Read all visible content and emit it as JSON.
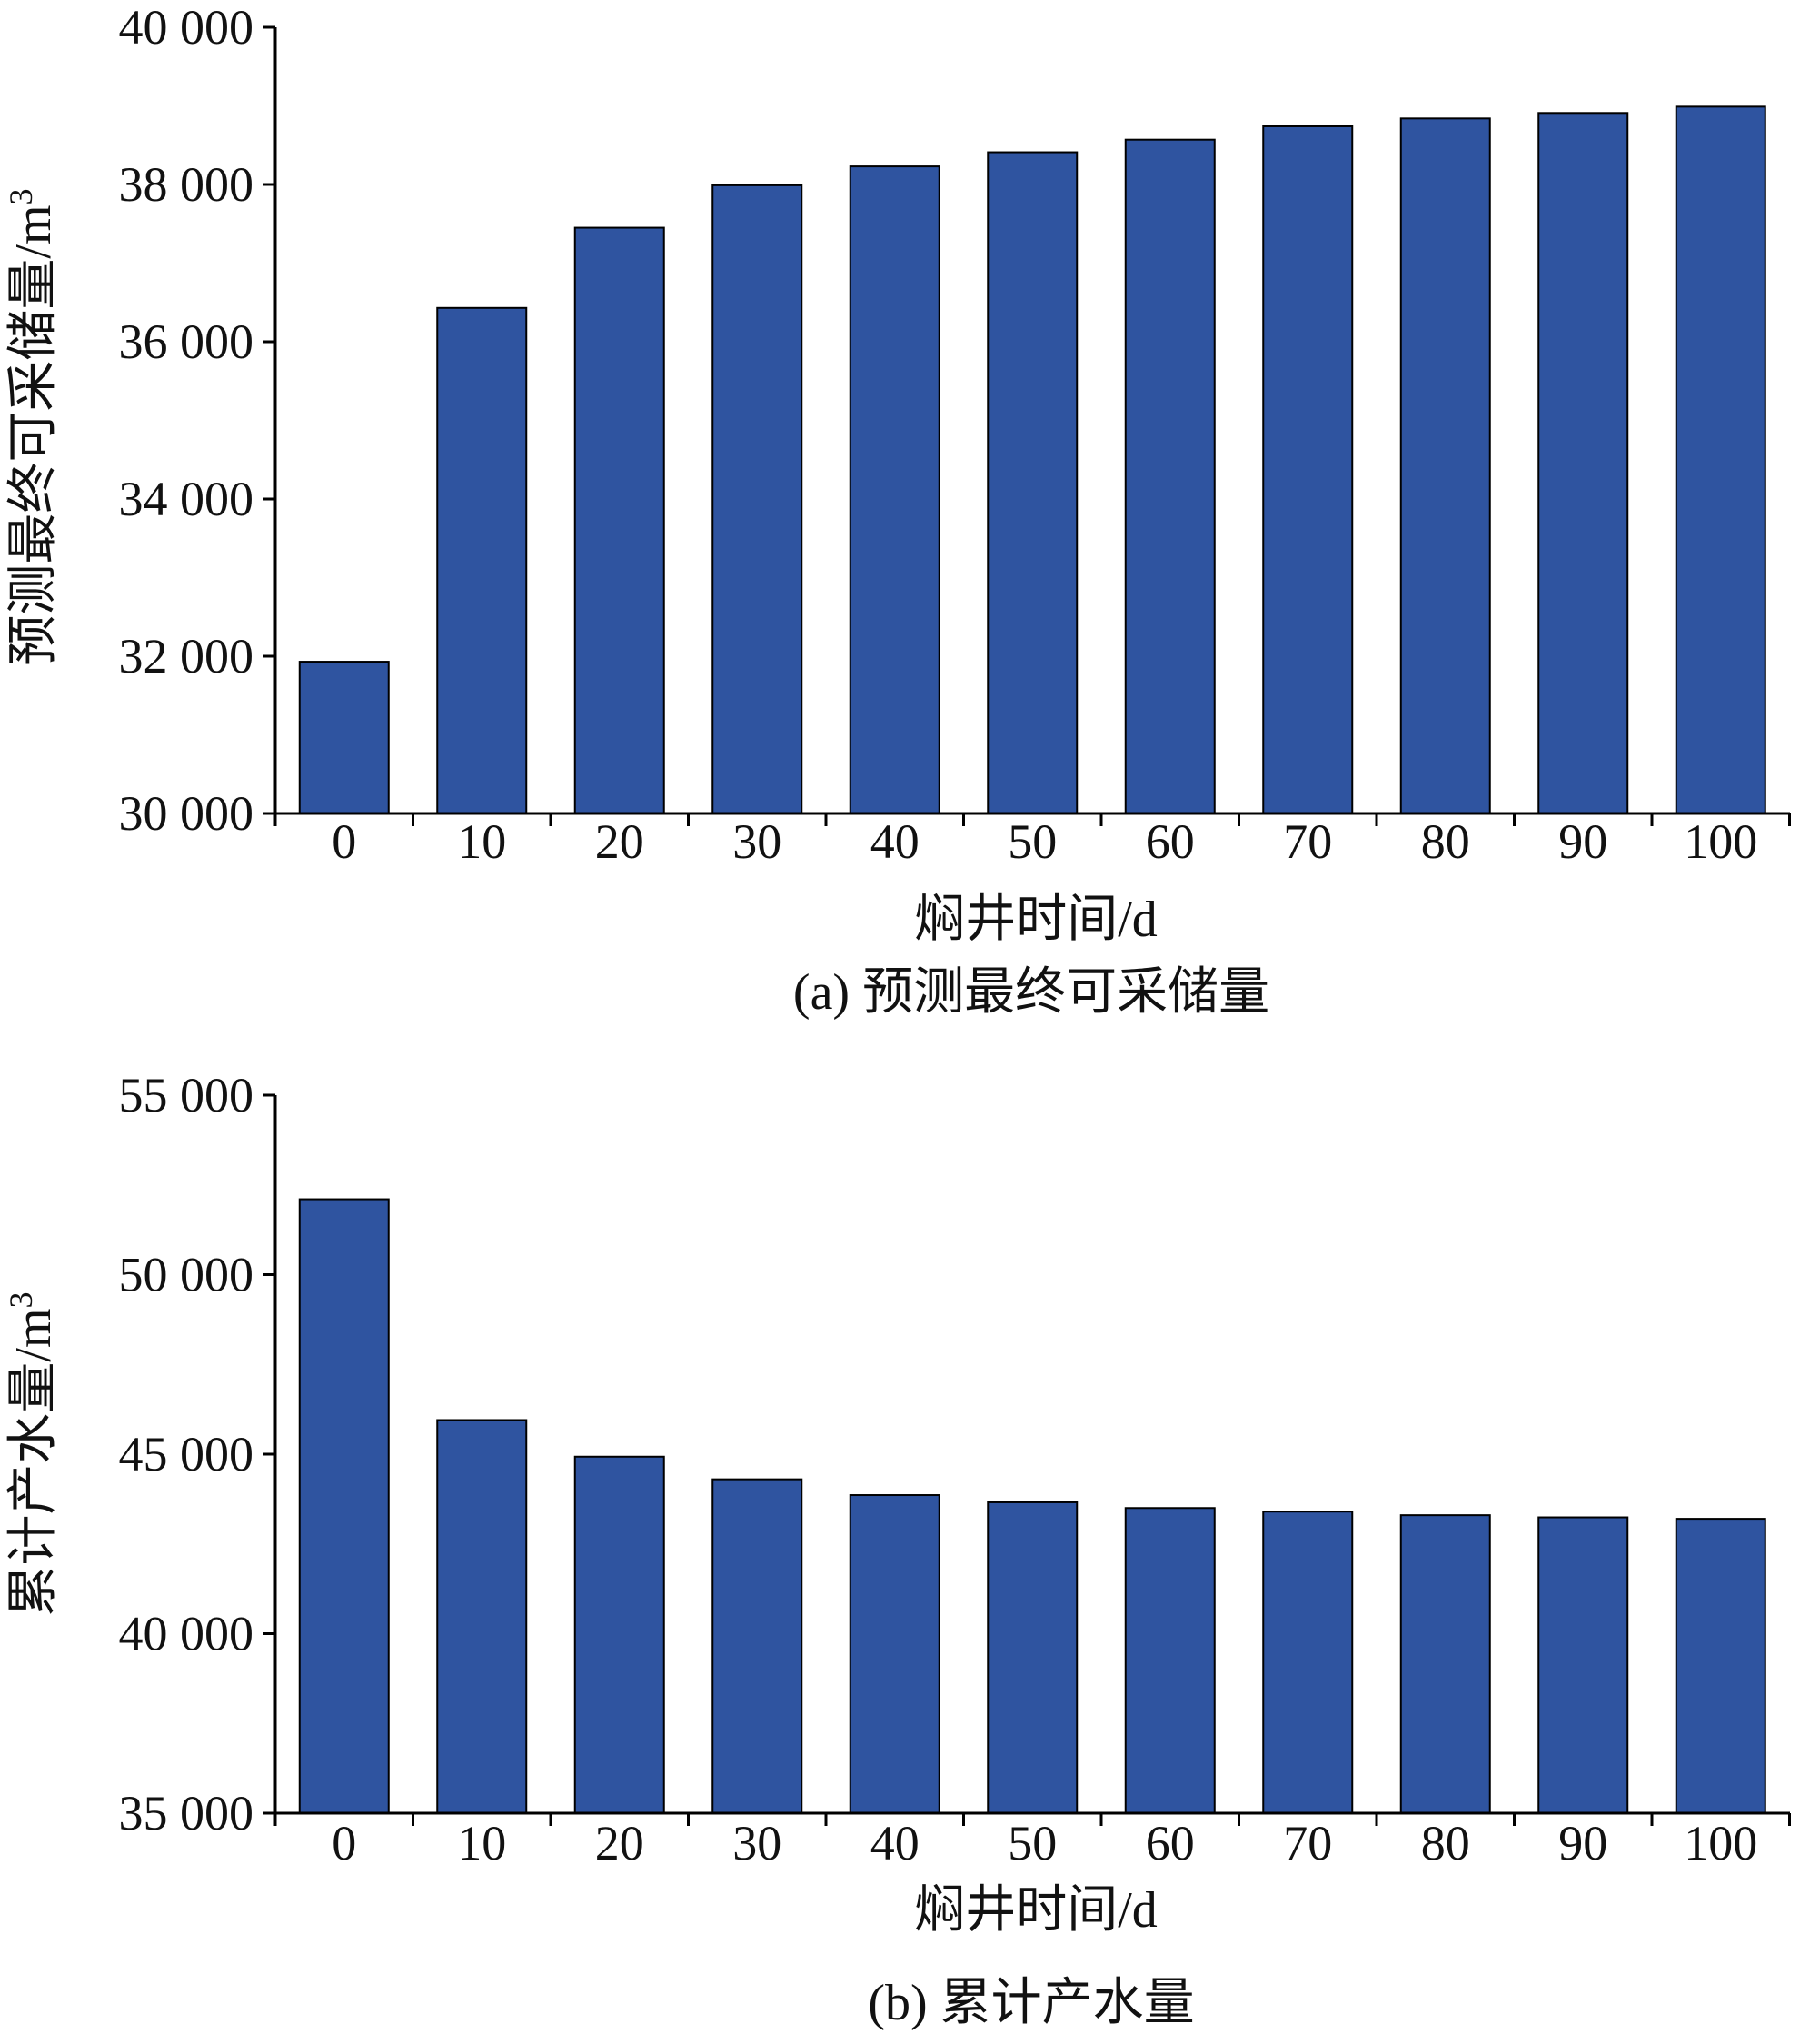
{
  "colors": {
    "bar": "#2f54a0",
    "axis": "#000000"
  },
  "chart_data": [
    {
      "type": "bar",
      "caption": "(a) 预测最终可采储量",
      "xlabel": "焖井时间/d",
      "ylabel": "预测最终可采储量/m",
      "ylabel_sup": "3",
      "categories": [
        "0",
        "10",
        "20",
        "30",
        "40",
        "50",
        "60",
        "70",
        "80",
        "90",
        "100"
      ],
      "values": [
        31930,
        36430,
        37450,
        37990,
        38230,
        38410,
        38570,
        38740,
        38840,
        38910,
        38990
      ],
      "ylim": [
        30000,
        40000
      ],
      "yticks": [
        30000,
        32000,
        34000,
        36000,
        38000,
        40000
      ],
      "ytick_labels": [
        "30 000",
        "32 000",
        "34 000",
        "36 000",
        "38 000",
        "40 000"
      ],
      "grid": false,
      "legend": "none"
    },
    {
      "type": "bar",
      "caption": "(b) 累计产水量",
      "xlabel": "焖井时间/d",
      "ylabel": "累计产水量/m",
      "ylabel_sup": "3",
      "categories": [
        "0",
        "10",
        "20",
        "30",
        "40",
        "50",
        "60",
        "70",
        "80",
        "90",
        "100"
      ],
      "values": [
        52100,
        45950,
        44930,
        44300,
        43860,
        43660,
        43500,
        43400,
        43300,
        43240,
        43200
      ],
      "ylim": [
        35000,
        55000
      ],
      "yticks": [
        35000,
        40000,
        45000,
        50000,
        55000
      ],
      "ytick_labels": [
        "35 000",
        "40 000",
        "45 000",
        "50 000",
        "55 000"
      ],
      "grid": false,
      "legend": "none"
    }
  ]
}
